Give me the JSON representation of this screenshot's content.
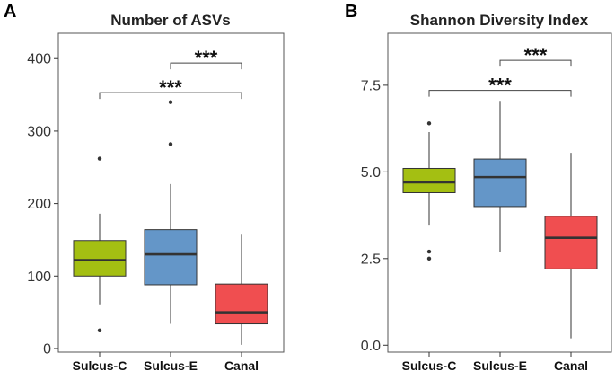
{
  "chart_data": [
    {
      "type": "box",
      "panel_label": "A",
      "title": "Number of ASVs",
      "xlabel": "",
      "ylabel": "",
      "ylim": [
        -5,
        435
      ],
      "yticks": [
        0,
        100,
        200,
        300,
        400
      ],
      "ytick_labels": [
        "0",
        "100",
        "200",
        "300",
        "400"
      ],
      "categories": [
        "Sulcus-C",
        "Sulcus-E",
        "Canal"
      ],
      "colors": [
        "#a4bf12",
        "#6496c8",
        "#f04e50"
      ],
      "boxes": [
        {
          "name": "Sulcus-C",
          "q1": 100,
          "median": 122,
          "q3": 149,
          "whisker_low": 61,
          "whisker_high": 186,
          "outliers": [
            262,
            25
          ]
        },
        {
          "name": "Sulcus-E",
          "q1": 88,
          "median": 130,
          "q3": 164,
          "whisker_low": 34,
          "whisker_high": 227,
          "outliers": [
            340,
            282
          ]
        },
        {
          "name": "Canal",
          "q1": 34,
          "median": 50,
          "q3": 89,
          "whisker_low": 5,
          "whisker_high": 157,
          "outliers": []
        }
      ],
      "significance": [
        {
          "from": "Sulcus-E",
          "to": "Canal",
          "y": 394,
          "label": "***"
        },
        {
          "from": "Sulcus-C",
          "to": "Canal",
          "y": 353,
          "label": "***"
        }
      ]
    },
    {
      "type": "box",
      "panel_label": "B",
      "title": "Shannon Diversity Index",
      "xlabel": "",
      "ylabel": "",
      "ylim": [
        -0.2,
        9.0
      ],
      "yticks": [
        0,
        2.5,
        5.0,
        7.5
      ],
      "ytick_labels": [
        "0.0",
        "2.5",
        "5.0",
        "7.5"
      ],
      "categories": [
        "Sulcus-C",
        "Sulcus-E",
        "Canal"
      ],
      "colors": [
        "#a4bf12",
        "#6496c8",
        "#f04e50"
      ],
      "boxes": [
        {
          "name": "Sulcus-C",
          "q1": 4.4,
          "median": 4.7,
          "q3": 5.1,
          "whisker_low": 3.45,
          "whisker_high": 6.15,
          "outliers": [
            6.4,
            2.7,
            2.5
          ]
        },
        {
          "name": "Sulcus-E",
          "q1": 4.0,
          "median": 4.85,
          "q3": 5.37,
          "whisker_low": 2.7,
          "whisker_high": 7.05,
          "outliers": []
        },
        {
          "name": "Canal",
          "q1": 2.2,
          "median": 3.1,
          "q3": 3.72,
          "whisker_low": 0.2,
          "whisker_high": 5.55,
          "outliers": []
        }
      ],
      "significance": [
        {
          "from": "Sulcus-E",
          "to": "Canal",
          "y": 8.22,
          "label": "***"
        },
        {
          "from": "Sulcus-C",
          "to": "Canal",
          "y": 7.35,
          "label": "***"
        }
      ]
    }
  ]
}
